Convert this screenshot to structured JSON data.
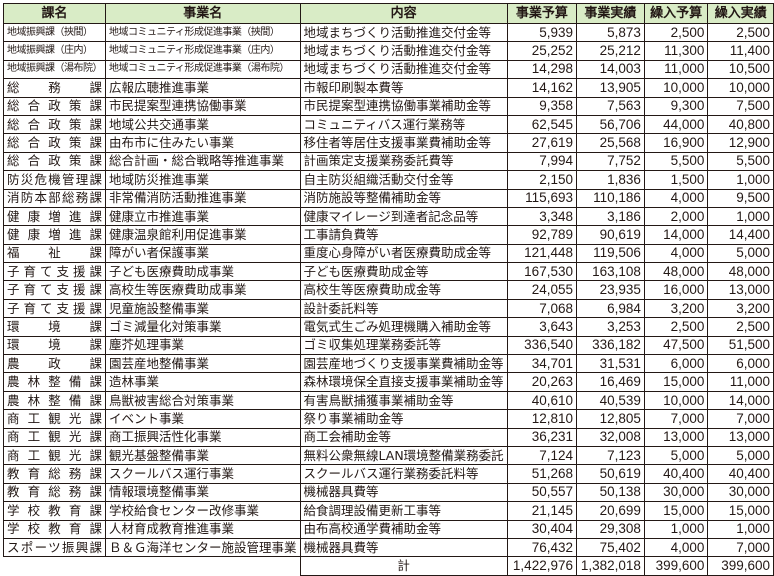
{
  "table": {
    "headers": [
      "課名",
      "事業名",
      "内容",
      "事業予算",
      "事業実績",
      "繰入予算",
      "繰入実績"
    ],
    "header_color": "#d9ecc6",
    "rows": [
      [
        "地域振興課（挾間）",
        "地域コミュニティ形成促進事業（挾間）",
        "地域まちづくり活動推進交付金等",
        "5,939",
        "5,873",
        "2,500",
        "2,500"
      ],
      [
        "地域振興課（庄内）",
        "地域コミュニティ形成促進事業（庄内）",
        "地域まちづくり活動推進交付金等",
        "25,252",
        "25,212",
        "11,300",
        "11,400"
      ],
      [
        "地域振興課（湯布院）",
        "地域コミュニティ形成促進事業（湯布院）",
        "地域まちづくり活動推進交付金等",
        "14,298",
        "14,003",
        "11,000",
        "10,500"
      ],
      [
        "総務課",
        "広報広聴推進事業",
        "市報印刷製本費等",
        "14,162",
        "13,905",
        "10,000",
        "10,000"
      ],
      [
        "総合政策課",
        "市民提案型連携協働事業",
        "市民提案型連携協働事業補助金等",
        "9,358",
        "7,563",
        "9,300",
        "7,500"
      ],
      [
        "総合政策課",
        "地域公共交通事業",
        "コミュニティバス運行業務等",
        "62,545",
        "56,706",
        "44,000",
        "40,800"
      ],
      [
        "総合政策課",
        "由布市に住みたい事業",
        "移住者等居住支援事業費補助金等",
        "27,619",
        "25,568",
        "16,900",
        "12,900"
      ],
      [
        "総合政策課",
        "総合計画・総合戦略等推進事業",
        "計画策定支援業務委託費等",
        "7,994",
        "7,752",
        "5,500",
        "5,500"
      ],
      [
        "防災危機管理課",
        "地域防災推進事業",
        "自主防災組織活動交付金等",
        "2,150",
        "1,836",
        "1,500",
        "1,000"
      ],
      [
        "消防本部総務課",
        "非常備消防活動推進事業",
        "消防施設等整備補助金等",
        "115,693",
        "110,186",
        "4,000",
        "9,500"
      ],
      [
        "健康増進課",
        "健康立市推進事業",
        "健康マイレージ到達者記念品等",
        "3,348",
        "3,186",
        "2,000",
        "1,000"
      ],
      [
        "健康増進課",
        "健康温泉館利用促進事業",
        "工事請負費等",
        "92,789",
        "90,619",
        "14,000",
        "14,400"
      ],
      [
        "福祉課",
        "障がい者保護事業",
        "重度心身障がい者医療費助成金等",
        "121,448",
        "119,506",
        "4,000",
        "5,000"
      ],
      [
        "子育て支援課",
        "子ども医療費助成事業",
        "子ども医療費助成金等",
        "167,530",
        "163,108",
        "48,000",
        "48,000"
      ],
      [
        "子育て支援課",
        "高校生等医療費助成事業",
        "高校生等医療費助成金等",
        "24,055",
        "23,935",
        "16,000",
        "13,000"
      ],
      [
        "子育て支援課",
        "児童施設整備事業",
        "設計委託料等",
        "7,068",
        "6,984",
        "3,200",
        "3,200"
      ],
      [
        "環境課",
        "ゴミ減量化対策事業",
        "電気式生ごみ処理機購入補助金等",
        "3,643",
        "3,253",
        "2,500",
        "2,500"
      ],
      [
        "環境課",
        "塵芥処理事業",
        "ゴミ収集処理業務委託等",
        "336,540",
        "336,182",
        "47,500",
        "51,500"
      ],
      [
        "農政課",
        "園芸産地整備事業",
        "園芸産地づくり支援事業費補助金等",
        "34,701",
        "31,531",
        "6,000",
        "6,000"
      ],
      [
        "農林整備課",
        "造林事業",
        "森林環境保全直接支援事業補助金等",
        "20,263",
        "16,469",
        "15,000",
        "11,000"
      ],
      [
        "農林整備課",
        "鳥獣被害総合対策事業",
        "有害鳥獣捕獲事業補助金等",
        "40,610",
        "40,539",
        "10,000",
        "14,000"
      ],
      [
        "商工観光課",
        "イベント事業",
        "祭り事業補助金等",
        "12,810",
        "12,805",
        "7,000",
        "7,000"
      ],
      [
        "商工観光課",
        "商工振興活性化事業",
        "商工会補助金等",
        "36,231",
        "32,008",
        "13,000",
        "13,000"
      ],
      [
        "商工観光課",
        "観光基盤整備事業",
        "無料公衆無線LAN環境整備業務委託",
        "7,124",
        "7,123",
        "5,000",
        "5,000"
      ],
      [
        "教育総務課",
        "スクールバス運行事業",
        "スクールバス運行業務委託料等",
        "51,268",
        "50,619",
        "40,400",
        "40,400"
      ],
      [
        "教育総務課",
        "情報環境整備事業",
        "機械器具費等",
        "50,557",
        "50,138",
        "30,000",
        "30,000"
      ],
      [
        "学校教育課",
        "学校給食センター改修事業",
        "給食調理設備更新工事等",
        "21,145",
        "20,699",
        "15,000",
        "15,000"
      ],
      [
        "学校教育課",
        "人材育成教育推進事業",
        "由布高校通学費補助金等",
        "30,404",
        "29,308",
        "1,000",
        "1,000"
      ],
      [
        "スポーツ振興課",
        "Ｂ＆Ｇ海洋センター施設管理事業",
        "機械器具費等",
        "76,432",
        "75,402",
        "4,000",
        "7,000"
      ]
    ],
    "total": {
      "label": "計",
      "values": [
        "1,422,976",
        "1,382,018",
        "399,600",
        "399,600"
      ]
    }
  }
}
